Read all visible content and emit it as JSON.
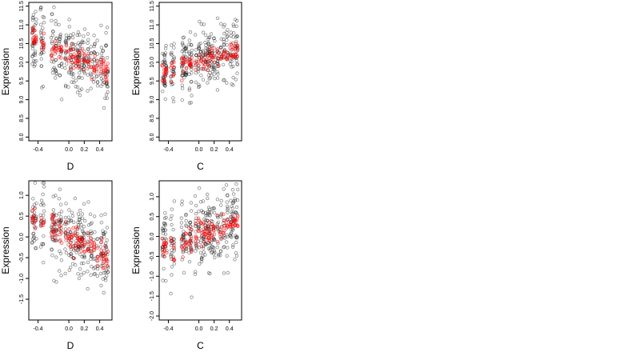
{
  "chart_data": [
    {
      "type": "scatter",
      "xlabel": "D",
      "ylabel": "Expression",
      "xlim": [
        -0.52,
        0.56
      ],
      "ylim": [
        7.9,
        11.6
      ],
      "x_ticks": [
        -0.4,
        0.0,
        0.2,
        0.4
      ],
      "x_tick_labels": [
        "-0.4",
        "0.0",
        "0.2",
        "0.4"
      ],
      "y_ticks": [
        8.0,
        8.5,
        9.0,
        9.5,
        10.0,
        10.5,
        11.0,
        11.5
      ],
      "y_tick_labels": [
        "8.0",
        "8.5",
        "9.0",
        "9.5",
        "10.0",
        "10.5",
        "11.0",
        "11.5"
      ],
      "trend": {
        "x0": -0.5,
        "y0": 10.65,
        "x1": 0.52,
        "y1": 9.75
      },
      "spread": 0.42,
      "colors": {
        "observed": "#000000",
        "fitted": "#ff0000"
      },
      "series": [
        {
          "name": "",
          "role": "observed",
          "color": "#000000"
        },
        {
          "name": "",
          "role": "fitted",
          "color": "#ff0000"
        }
      ]
    },
    {
      "type": "scatter",
      "xlabel": "C",
      "ylabel": "Expression",
      "xlim": [
        -0.52,
        0.56
      ],
      "ylim": [
        7.9,
        11.6
      ],
      "x_ticks": [
        -0.4,
        0.0,
        0.2,
        0.4
      ],
      "x_tick_labels": [
        "-0.4",
        "0.0",
        "0.2",
        "0.4"
      ],
      "y_ticks": [
        8.0,
        8.5,
        9.0,
        9.5,
        10.0,
        10.5,
        11.0,
        11.5
      ],
      "y_tick_labels": [
        "8.0",
        "8.5",
        "9.0",
        "9.5",
        "10.0",
        "10.5",
        "11.0",
        "11.5"
      ],
      "trend": {
        "x0": -0.5,
        "y0": 9.75,
        "x1": 0.52,
        "y1": 10.35
      },
      "spread": 0.42,
      "colors": {
        "observed": "#000000",
        "fitted": "#ff0000"
      },
      "series": [
        {
          "name": "",
          "role": "observed",
          "color": "#000000"
        },
        {
          "name": "",
          "role": "fitted",
          "color": "#ff0000"
        }
      ]
    },
    {
      "type": "scatter",
      "xlabel": "D",
      "ylabel": "Expression",
      "xlim": [
        -0.52,
        0.56
      ],
      "ylim": [
        -2.0,
        1.35
      ],
      "x_ticks": [
        -0.4,
        0.0,
        0.2,
        0.4
      ],
      "x_tick_labels": [
        "-0.4",
        "0.0",
        "0.2",
        "0.4"
      ],
      "y_ticks": [
        -1.5,
        -1.0,
        -0.5,
        0.0,
        0.5,
        1.0
      ],
      "y_tick_labels": [
        "-1.5",
        "-1.0",
        "-0.5",
        "0.0",
        "0.5",
        "1.0"
      ],
      "trend": {
        "x0": -0.5,
        "y0": 0.55,
        "x1": 0.52,
        "y1": -0.5
      },
      "spread": 0.45,
      "colors": {
        "observed": "#000000",
        "fitted": "#ff0000"
      },
      "series": [
        {
          "name": "",
          "role": "observed",
          "color": "#000000"
        },
        {
          "name": "",
          "role": "fitted",
          "color": "#ff0000"
        }
      ]
    },
    {
      "type": "scatter",
      "xlabel": "C",
      "ylabel": "Expression",
      "xlim": [
        -0.52,
        0.56
      ],
      "ylim": [
        -2.1,
        1.4
      ],
      "x_ticks": [
        -0.4,
        0.0,
        0.2,
        0.4
      ],
      "x_tick_labels": [
        "-0.4",
        "0.0",
        "0.2",
        "0.4"
      ],
      "y_ticks": [
        -2.0,
        -1.5,
        -1.0,
        -0.5,
        0.0,
        0.5,
        1.0
      ],
      "y_tick_labels": [
        "-2.0",
        "-1.5",
        "-1.0",
        "-0.5",
        "0.0",
        "0.5",
        "1.0"
      ],
      "trend": {
        "x0": -0.5,
        "y0": -0.3,
        "x1": 0.52,
        "y1": 0.4
      },
      "spread": 0.45,
      "colors": {
        "observed": "#000000",
        "fitted": "#ff0000"
      },
      "series": [
        {
          "name": "",
          "role": "observed",
          "color": "#000000"
        },
        {
          "name": "",
          "role": "fitted",
          "color": "#ff0000"
        }
      ]
    }
  ]
}
